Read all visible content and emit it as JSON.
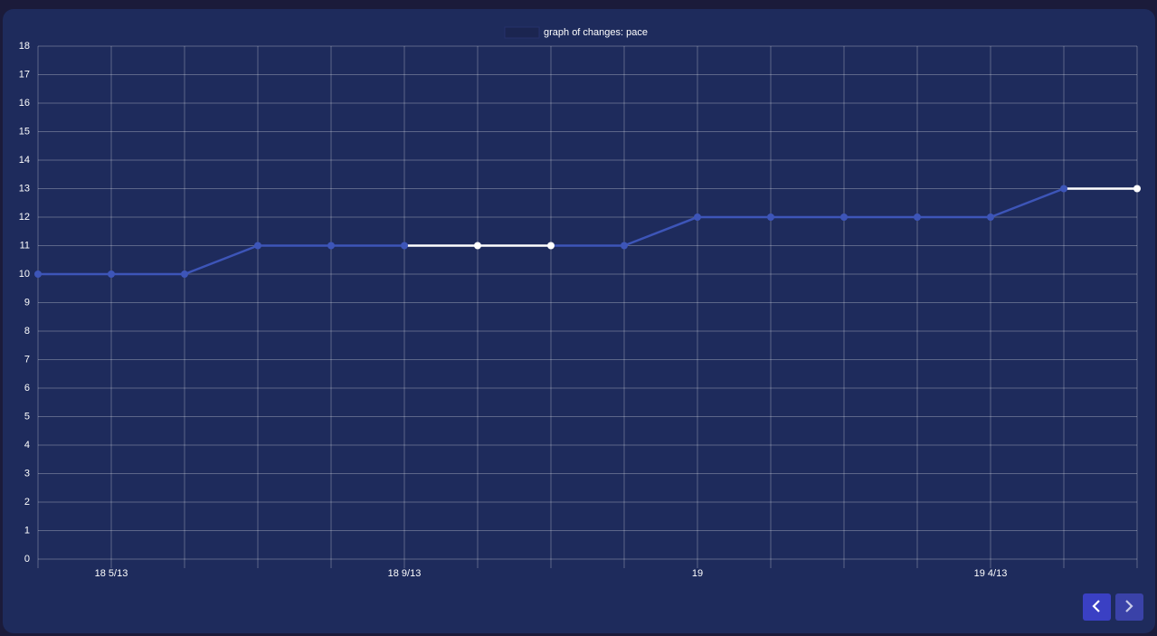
{
  "chart_data": {
    "type": "line",
    "categories": [
      null,
      "18 5/13",
      null,
      null,
      null,
      "18 9/13",
      null,
      null,
      null,
      "19",
      null,
      null,
      null,
      "19 4/13",
      null,
      null
    ],
    "series": [
      {
        "name": "graph of changes: pace",
        "color": "#3d55b8",
        "values": [
          10,
          10,
          10,
          11,
          11,
          11,
          11,
          11,
          11,
          12,
          12,
          12,
          12,
          12,
          13,
          13
        ],
        "point_colors": [
          "#3d55b8",
          "#3d55b8",
          "#3d55b8",
          "#3d55b8",
          "#3d55b8",
          "#3d55b8",
          "#ffffff",
          "#ffffff",
          "#3d55b8",
          "#3d55b8",
          "#3d55b8",
          "#3d55b8",
          "#3d55b8",
          "#3d55b8",
          "#3d55b8",
          "#ffffff"
        ]
      }
    ],
    "ylim": [
      0,
      18
    ],
    "yticks": [
      0,
      1,
      2,
      3,
      4,
      5,
      6,
      7,
      8,
      9,
      10,
      11,
      12,
      13,
      14,
      15,
      16,
      17,
      18
    ],
    "grid": true,
    "legend": "top"
  }
}
